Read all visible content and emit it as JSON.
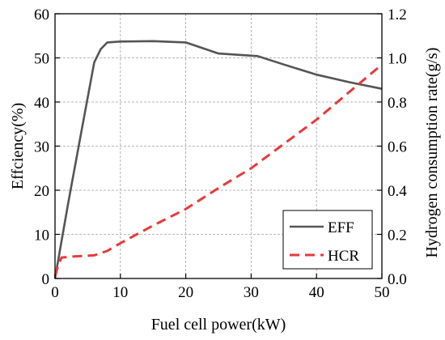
{
  "chart_data": {
    "type": "line",
    "title": "",
    "xlabel": "Fuel cell power(kW)",
    "ylabel_left": "Effciency(%)",
    "ylabel_right": "Hydrogen consumption rate(g/s)",
    "xlim": [
      0,
      50
    ],
    "ylim_left": [
      0,
      60
    ],
    "ylim_right": [
      0,
      1.2
    ],
    "x_ticks": [
      "0",
      "10",
      "20",
      "30",
      "40",
      "50"
    ],
    "y_left_ticks": [
      "0",
      "10",
      "20",
      "30",
      "40",
      "50",
      "60"
    ],
    "y_right_ticks": [
      "0.0",
      "0.2",
      "0.4",
      "0.6",
      "0.8",
      "1.0",
      "1.2"
    ],
    "grid": true,
    "legend_position": "bottom-right",
    "series": [
      {
        "name": "EFF",
        "axis": "left",
        "color": "#555555",
        "style": "solid",
        "x": [
          0,
          2,
          4,
          6,
          7,
          8,
          10,
          15,
          20,
          22,
          25,
          28,
          31,
          35,
          40,
          45,
          50
        ],
        "y": [
          0,
          17,
          33,
          49,
          52,
          53.5,
          53.7,
          53.8,
          53.5,
          52.5,
          51,
          50.7,
          50.4,
          48.5,
          46.2,
          44.5,
          43
        ]
      },
      {
        "name": "HCR",
        "axis": "right",
        "color": "#e83a3a",
        "style": "dashed",
        "x": [
          0,
          0.5,
          1,
          3,
          6,
          8,
          10,
          15,
          20,
          25,
          30,
          35,
          40,
          45,
          50
        ],
        "y": [
          0.01,
          0.06,
          0.095,
          0.1,
          0.105,
          0.125,
          0.16,
          0.24,
          0.315,
          0.41,
          0.5,
          0.61,
          0.72,
          0.845,
          0.97
        ]
      }
    ]
  }
}
